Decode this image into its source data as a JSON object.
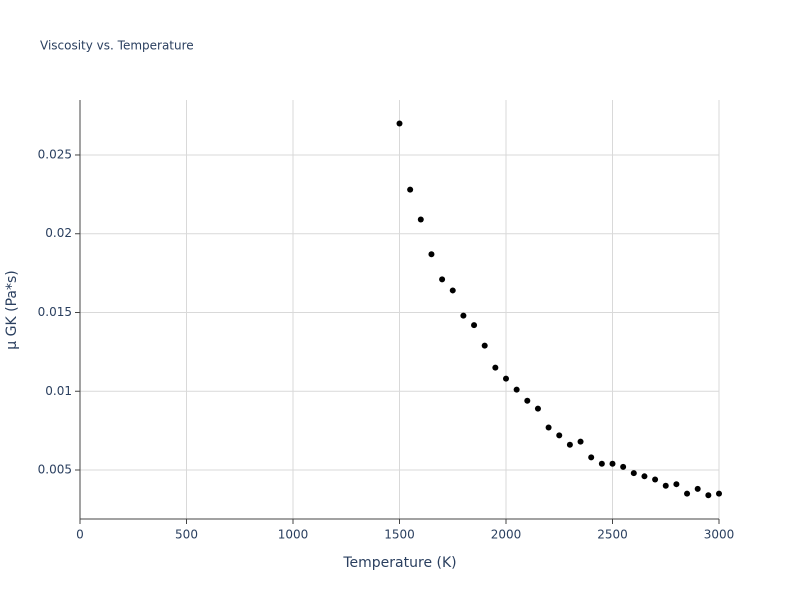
{
  "chart_data": {
    "type": "scatter",
    "title": "Viscosity vs. Temperature",
    "x_label": "Temperature (K)",
    "y_label": "μ GK (Pa*s)",
    "series": [
      {
        "color": "#000000",
        "x": [
          1500,
          1550,
          1600,
          1650,
          1700,
          1750,
          1800,
          1850,
          1900,
          1950,
          2000,
          2050,
          2100,
          2150,
          2200,
          2250,
          2300,
          2350,
          2400,
          2450,
          2500,
          2550,
          2600,
          2650,
          2700,
          2750,
          2800,
          2850,
          2900,
          2950,
          3000
        ],
        "values": [
          0.027,
          0.0228,
          0.0209,
          0.0187,
          0.0171,
          0.0164,
          0.0148,
          0.0142,
          0.0129,
          0.0115,
          0.0108,
          0.0101,
          0.0094,
          0.0089,
          0.0077,
          0.0072,
          0.0066,
          0.0068,
          0.0058,
          0.0054,
          0.0054,
          0.0052,
          0.0048,
          0.0046,
          0.0044,
          0.004,
          0.0041,
          0.0035,
          0.0038,
          0.0034,
          0.0035
        ]
      }
    ],
    "xlim": [
      0,
      3000
    ],
    "xticks": [
      0,
      500,
      1000,
      1500,
      2000,
      2500,
      3000
    ],
    "ylim": [
      0.00189,
      0.02849
    ],
    "yticks": [
      0.005,
      0.01,
      0.015,
      0.02,
      0.025
    ],
    "grid": true
  }
}
